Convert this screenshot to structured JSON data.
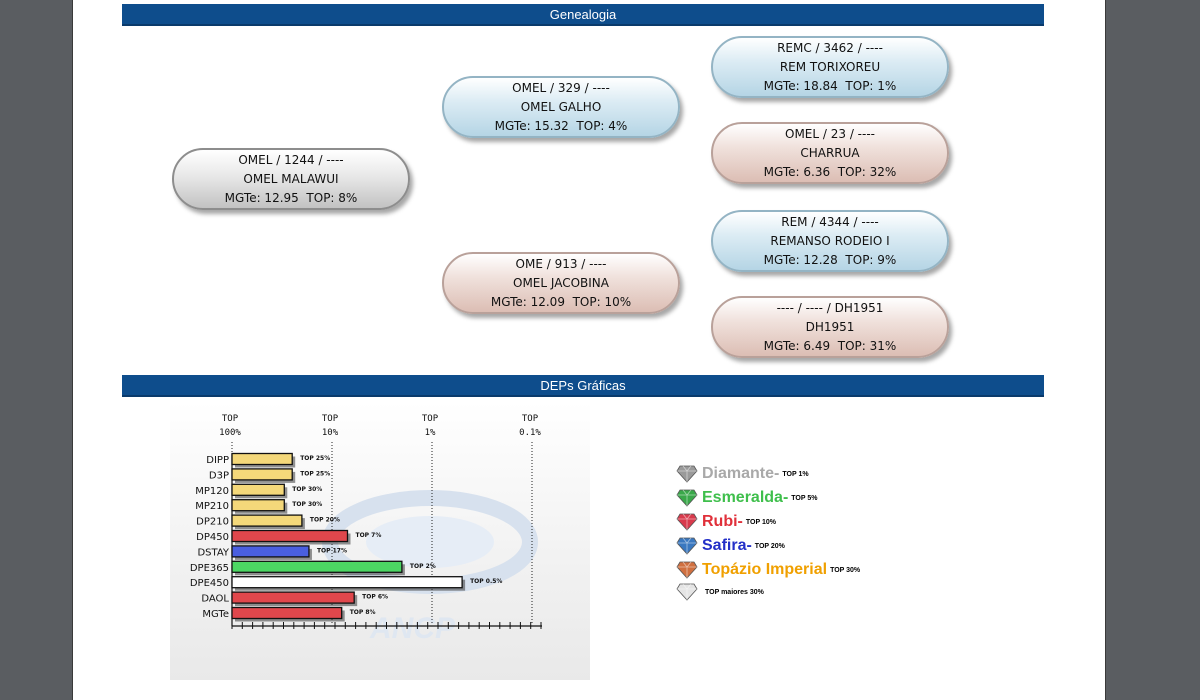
{
  "sections": {
    "genealogia": "Genealogia",
    "deps": "DEPs Gráficas"
  },
  "genealogy": [
    {
      "id": "sire",
      "tone": "grey",
      "line1": "OMEL / 1244 / ----",
      "line2": "OMEL MALAWUI",
      "mgte": "MGTe: 12.95",
      "top": "TOP: 8%"
    },
    {
      "id": "pgs",
      "tone": "blue",
      "line1": "OMEL / 329 / ----",
      "line2": "OMEL GALHO",
      "mgte": "MGTe: 15.32",
      "top": "TOP: 4%"
    },
    {
      "id": "mgs",
      "tone": "pink",
      "line1": "OME / 913 / ----",
      "line2": "OMEL JACOBINA",
      "mgte": "MGTe: 12.09",
      "top": "TOP: 10%"
    },
    {
      "id": "ggs1",
      "tone": "blue",
      "line1": "REMC / 3462 / ----",
      "line2": "REM TORIXOREU",
      "mgte": "MGTe: 18.84",
      "top": "TOP: 1%"
    },
    {
      "id": "ggd1",
      "tone": "pink",
      "line1": "OMEL / 23 / ----",
      "line2": "CHARRUA",
      "mgte": "MGTe: 6.36",
      "top": "TOP: 32%"
    },
    {
      "id": "ggs2",
      "tone": "blue",
      "line1": "REM / 4344 / ----",
      "line2": "REMANSO RODEIO I",
      "mgte": "MGTe: 12.28",
      "top": "TOP: 9%"
    },
    {
      "id": "ggd2",
      "tone": "pink",
      "line1": "---- / ---- / DH1951",
      "line2": "DH1951",
      "mgte": "MGTe: 6.49",
      "top": "TOP: 31%"
    }
  ],
  "chart_data": {
    "type": "bar",
    "orientation": "horizontal",
    "x_scale_labels": [
      {
        "top": "TOP",
        "bottom": "100%"
      },
      {
        "top": "TOP",
        "bottom": "10%"
      },
      {
        "top": "TOP",
        "bottom": "1%"
      },
      {
        "top": "TOP",
        "bottom": "0.1%"
      }
    ],
    "categories": [
      "DIPP",
      "D3P",
      "MP120",
      "MP210",
      "DP210",
      "DP450",
      "DSTAY",
      "DPE365",
      "DPE450",
      "DAOL",
      "MGTe"
    ],
    "values_top_percent": [
      25,
      25,
      30,
      30,
      20,
      7,
      17,
      2,
      0.5,
      6,
      8
    ],
    "value_labels": [
      "TOP 25%",
      "TOP 25%",
      "TOP 30%",
      "TOP 30%",
      "TOP 20%",
      "TOP 7%",
      "TOP 17%",
      "TOP 2%",
      "TOP 0.5%",
      "TOP 6%",
      "TOP 8%"
    ],
    "bar_colors": [
      "#f4d87a",
      "#f4d87a",
      "#f4d87a",
      "#f4d87a",
      "#f4d87a",
      "#e0474c",
      "#4a5fe0",
      "#4cd663",
      "#ffffff",
      "#e0474c",
      "#e0474c"
    ],
    "watermark": "ANCP",
    "legend_placement": "right"
  },
  "legend": [
    {
      "name": "Diamante",
      "suffix": " -",
      "top": "TOP 1%",
      "color": "#a9a9a9",
      "gem": "#9a9a9a"
    },
    {
      "name": "Esmeralda",
      "suffix": " -",
      "top": "TOP 5%",
      "color": "#3fbf4c",
      "gem": "#3aa84a"
    },
    {
      "name": "Rubi",
      "suffix": " -",
      "top": "TOP 10%",
      "color": "#e0303a",
      "gem": "#d83a4c"
    },
    {
      "name": "Safira",
      "suffix": " -",
      "top": "TOP 20%",
      "color": "#2430c8",
      "gem": "#3a78c0"
    },
    {
      "name": "Topázio Imperial",
      "suffix": "",
      "top": "TOP 30%",
      "color": "#f0a000",
      "gem": "#d07040"
    }
  ],
  "legend_last": {
    "top": "TOP maiores 30%",
    "gem": "#e4e4e4"
  }
}
